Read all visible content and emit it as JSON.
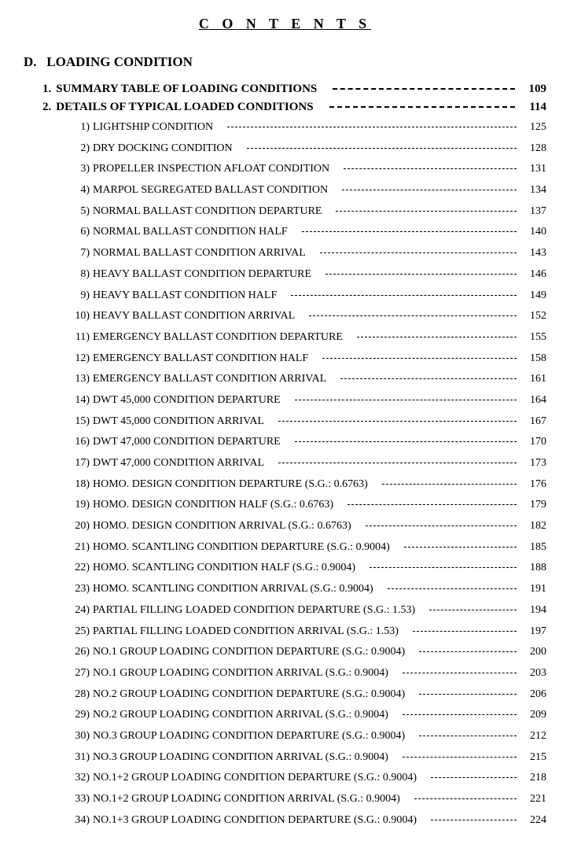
{
  "title": "C O N T E N T S",
  "section": {
    "prefix": "D.",
    "label": "LOADING CONDITION"
  },
  "main_items": [
    {
      "num": "1.",
      "label": "SUMMARY TABLE OF LOADING CONDITIONS",
      "page": "109"
    },
    {
      "num": "2.",
      "label": "DETAILS OF TYPICAL LOADED CONDITIONS",
      "page": "114"
    }
  ],
  "sub_items": [
    {
      "num": "1)",
      "label": "LIGHTSHIP CONDITION",
      "page": "125"
    },
    {
      "num": "2)",
      "label": "DRY DOCKING CONDITION",
      "page": "128"
    },
    {
      "num": "3)",
      "label": "PROPELLER INSPECTION AFLOAT CONDITION",
      "page": "131"
    },
    {
      "num": "4)",
      "label": "MARPOL SEGREGATED BALLAST CONDITION",
      "page": "134"
    },
    {
      "num": "5)",
      "label": "NORMAL BALLAST CONDITION DEPARTURE",
      "page": "137"
    },
    {
      "num": "6)",
      "label": "NORMAL BALLAST CONDITION HALF",
      "page": "140"
    },
    {
      "num": "7)",
      "label": "NORMAL BALLAST CONDITION ARRIVAL",
      "page": "143"
    },
    {
      "num": "8)",
      "label": "HEAVY BALLAST CONDITION DEPARTURE",
      "page": "146"
    },
    {
      "num": "9)",
      "label": "HEAVY BALLAST CONDITION HALF",
      "page": "149"
    },
    {
      "num": "10)",
      "label": "HEAVY BALLAST CONDITION ARRIVAL",
      "page": "152"
    },
    {
      "num": "11)",
      "label": "EMERGENCY BALLAST CONDITION DEPARTURE",
      "page": "155"
    },
    {
      "num": "12)",
      "label": "EMERGENCY BALLAST CONDITION HALF",
      "page": "158"
    },
    {
      "num": "13)",
      "label": "EMERGENCY BALLAST CONDITION ARRIVAL",
      "page": "161"
    },
    {
      "num": "14)",
      "label": "DWT 45,000 CONDITION DEPARTURE",
      "page": "164"
    },
    {
      "num": "15)",
      "label": "DWT 45,000 CONDITION ARRIVAL",
      "page": "167"
    },
    {
      "num": "16)",
      "label": "DWT 47,000 CONDITION DEPARTURE",
      "page": "170"
    },
    {
      "num": "17)",
      "label": "DWT 47,000 CONDITION ARRIVAL",
      "page": "173"
    },
    {
      "num": "18)",
      "label": "HOMO. DESIGN CONDITION DEPARTURE (S.G.: 0.6763)",
      "page": "176"
    },
    {
      "num": "19)",
      "label": "HOMO. DESIGN CONDITION HALF (S.G.: 0.6763)",
      "page": "179"
    },
    {
      "num": "20)",
      "label": "HOMO. DESIGN CONDITION ARRIVAL (S.G.: 0.6763)",
      "page": "182"
    },
    {
      "num": "21)",
      "label": "HOMO. SCANTLING CONDITION DEPARTURE (S.G.: 0.9004)",
      "page": "185"
    },
    {
      "num": "22)",
      "label": "HOMO. SCANTLING CONDITION HALF (S.G.: 0.9004)",
      "page": "188"
    },
    {
      "num": "23)",
      "label": "HOMO. SCANTLING CONDITION ARRIVAL (S.G.: 0.9004)",
      "page": "191"
    },
    {
      "num": "24)",
      "label": "PARTIAL FILLING LOADED CONDITION DEPARTURE (S.G.: 1.53)",
      "page": "194"
    },
    {
      "num": "25)",
      "label": "PARTIAL FILLING LOADED CONDITION ARRIVAL (S.G.: 1.53)",
      "page": "197"
    },
    {
      "num": "26)",
      "label": "NO.1 GROUP LOADING CONDITION DEPARTURE (S.G.: 0.9004)",
      "page": "200"
    },
    {
      "num": "27)",
      "label": "NO.1 GROUP LOADING CONDITION ARRIVAL (S.G.: 0.9004)",
      "page": "203"
    },
    {
      "num": "28)",
      "label": "NO.2 GROUP LOADING CONDITION DEPARTURE (S.G.: 0.9004)",
      "page": "206"
    },
    {
      "num": "29)",
      "label": "NO.2 GROUP LOADING CONDITION ARRIVAL (S.G.: 0.9004)",
      "page": "209"
    },
    {
      "num": "30)",
      "label": "NO.3 GROUP LOADING CONDITION DEPARTURE (S.G.: 0.9004)",
      "page": "212"
    },
    {
      "num": "31)",
      "label": "NO.3 GROUP LOADING CONDITION ARRIVAL (S.G.: 0.9004)",
      "page": "215"
    },
    {
      "num": "32)",
      "label": "NO.1+2 GROUP LOADING CONDITION DEPARTURE (S.G.: 0.9004)",
      "page": "218"
    },
    {
      "num": "33)",
      "label": "NO.1+2 GROUP LOADING CONDITION ARRIVAL (S.G.: 0.9004)",
      "page": "221"
    },
    {
      "num": "34)",
      "label": "NO.1+3 GROUP LOADING CONDITION DEPARTURE (S.G.: 0.9004)",
      "page": "224"
    }
  ]
}
